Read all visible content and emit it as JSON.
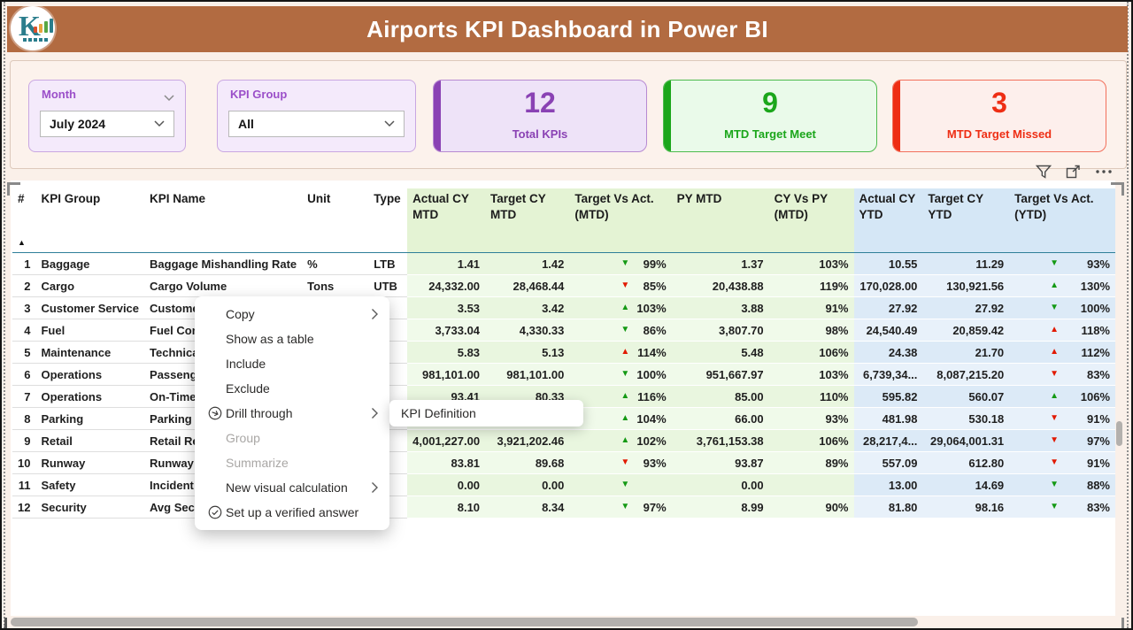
{
  "header": {
    "title": "Airports KPI Dashboard in Power BI",
    "logo_letter": "K"
  },
  "filters": {
    "month": {
      "label": "Month",
      "value": "July 2024"
    },
    "kpi_group": {
      "label": "KPI Group",
      "value": "All"
    }
  },
  "cards": [
    {
      "value": "12",
      "label": "Total KPIs",
      "accent": "#8a42b4",
      "bg": "#eee3f8",
      "border": "#b78ad2"
    },
    {
      "value": "9",
      "label": "MTD Target Meet",
      "accent": "#1ba61b",
      "bg": "#eafaea",
      "border": "#4dbb4d"
    },
    {
      "value": "3",
      "label": "MTD Target Missed",
      "accent": "#ee2e14",
      "bg": "#fdefec",
      "border": "#f2705c"
    }
  ],
  "arrow_colors": {
    "green": "#149914",
    "red": "#e11900"
  },
  "table": {
    "columns": [
      "#",
      "KPI Group",
      "KPI Name",
      "Unit",
      "Type",
      "Actual CY MTD",
      "Target CY MTD",
      "Target Vs Act. (MTD)",
      "PY MTD",
      "CY Vs PY (MTD)",
      "Actual CY YTD",
      "Target CY YTD",
      "Target Vs Act. (YTD)"
    ],
    "rows": [
      {
        "num": "1",
        "group": "Baggage",
        "name": "Baggage Mishandling Rate",
        "unit": "%",
        "type": "LTB",
        "actual_mtd": "1.41",
        "target_mtd": "1.42",
        "mtd_dir": "down",
        "mtd_color": "green",
        "mtd_pct": "99%",
        "py_mtd": "1.37",
        "cy_vs_py": "103%",
        "actual_ytd": "10.55",
        "target_ytd": "11.29",
        "ytd_dir": "down",
        "ytd_color": "green",
        "ytd_pct": "93%"
      },
      {
        "num": "2",
        "group": "Cargo",
        "name": "Cargo Volume",
        "unit": "Tons",
        "type": "UTB",
        "actual_mtd": "24,332.00",
        "target_mtd": "28,468.44",
        "mtd_dir": "down",
        "mtd_color": "red",
        "mtd_pct": "85%",
        "py_mtd": "20,438.88",
        "cy_vs_py": "119%",
        "actual_ytd": "170,028.00",
        "target_ytd": "130,921.56",
        "ytd_dir": "up",
        "ytd_color": "green",
        "ytd_pct": "130%"
      },
      {
        "num": "3",
        "group": "Customer Service",
        "name": "Customer S",
        "unit": "",
        "type": "",
        "actual_mtd": "3.53",
        "target_mtd": "3.42",
        "mtd_dir": "up",
        "mtd_color": "green",
        "mtd_pct": "103%",
        "py_mtd": "3.88",
        "cy_vs_py": "91%",
        "actual_ytd": "27.92",
        "target_ytd": "27.92",
        "ytd_dir": "down",
        "ytd_color": "green",
        "ytd_pct": "100%"
      },
      {
        "num": "4",
        "group": "Fuel",
        "name": "Fuel Consu",
        "unit": "",
        "type": "",
        "actual_mtd": "3,733.04",
        "target_mtd": "4,330.33",
        "mtd_dir": "down",
        "mtd_color": "green",
        "mtd_pct": "86%",
        "py_mtd": "3,807.70",
        "cy_vs_py": "98%",
        "actual_ytd": "24,540.49",
        "target_ytd": "20,859.42",
        "ytd_dir": "up",
        "ytd_color": "red",
        "ytd_pct": "118%"
      },
      {
        "num": "5",
        "group": "Maintenance",
        "name": "Technical D",
        "unit": "",
        "type": "",
        "actual_mtd": "5.83",
        "target_mtd": "5.13",
        "mtd_dir": "up",
        "mtd_color": "red",
        "mtd_pct": "114%",
        "py_mtd": "5.48",
        "cy_vs_py": "106%",
        "actual_ytd": "24.38",
        "target_ytd": "21.70",
        "ytd_dir": "up",
        "ytd_color": "red",
        "ytd_pct": "112%"
      },
      {
        "num": "6",
        "group": "Operations",
        "name": "Passenger",
        "unit": "",
        "type": "",
        "actual_mtd": "981,101.00",
        "target_mtd": "981,101.00",
        "mtd_dir": "down",
        "mtd_color": "green",
        "mtd_pct": "100%",
        "py_mtd": "951,667.97",
        "cy_vs_py": "103%",
        "actual_ytd": "6,739,34...",
        "target_ytd": "8,087,215.20",
        "ytd_dir": "down",
        "ytd_color": "red",
        "ytd_pct": "83%"
      },
      {
        "num": "7",
        "group": "Operations",
        "name": "On-Time D",
        "unit": "",
        "type": "",
        "actual_mtd": "93.41",
        "target_mtd": "80.33",
        "mtd_dir": "up",
        "mtd_color": "green",
        "mtd_pct": "116%",
        "py_mtd": "85.00",
        "cy_vs_py": "110%",
        "actual_ytd": "595.82",
        "target_ytd": "560.07",
        "ytd_dir": "up",
        "ytd_color": "green",
        "ytd_pct": "106%"
      },
      {
        "num": "8",
        "group": "Parking",
        "name": "Parking Oc",
        "unit": "",
        "type": "",
        "actual_mtd": "",
        "target_mtd": "",
        "mtd_dir": "up",
        "mtd_color": "green",
        "mtd_pct": "104%",
        "py_mtd": "66.00",
        "cy_vs_py": "93%",
        "actual_ytd": "481.98",
        "target_ytd": "530.18",
        "ytd_dir": "down",
        "ytd_color": "red",
        "ytd_pct": "91%"
      },
      {
        "num": "9",
        "group": "Retail",
        "name": "Retail Reve",
        "unit": "",
        "type": "",
        "actual_mtd": "4,001,227.00",
        "target_mtd": "3,921,202.46",
        "mtd_dir": "up",
        "mtd_color": "green",
        "mtd_pct": "102%",
        "py_mtd": "3,761,153.38",
        "cy_vs_py": "106%",
        "actual_ytd": "28,217,4...",
        "target_ytd": "29,064,001.31",
        "ytd_dir": "down",
        "ytd_color": "red",
        "ytd_pct": "97%"
      },
      {
        "num": "10",
        "group": "Runway",
        "name": "Runway Ut",
        "unit": "",
        "type": "",
        "actual_mtd": "83.81",
        "target_mtd": "89.68",
        "mtd_dir": "down",
        "mtd_color": "red",
        "mtd_pct": "93%",
        "py_mtd": "93.87",
        "cy_vs_py": "89%",
        "actual_ytd": "557.09",
        "target_ytd": "612.80",
        "ytd_dir": "down",
        "ytd_color": "red",
        "ytd_pct": "91%"
      },
      {
        "num": "11",
        "group": "Safety",
        "name": "Incident Ra",
        "unit": "",
        "type": "",
        "actual_mtd": "0.00",
        "target_mtd": "0.00",
        "mtd_dir": "down",
        "mtd_color": "green",
        "mtd_pct": "",
        "py_mtd": "0.00",
        "cy_vs_py": "",
        "actual_ytd": "13.00",
        "target_ytd": "14.69",
        "ytd_dir": "down",
        "ytd_color": "green",
        "ytd_pct": "88%"
      },
      {
        "num": "12",
        "group": "Security",
        "name": "Avg Securi",
        "unit": "",
        "type": "",
        "actual_mtd": "8.10",
        "target_mtd": "8.34",
        "mtd_dir": "down",
        "mtd_color": "green",
        "mtd_pct": "97%",
        "py_mtd": "8.99",
        "cy_vs_py": "90%",
        "actual_ytd": "81.80",
        "target_ytd": "98.16",
        "ytd_dir": "down",
        "ytd_color": "green",
        "ytd_pct": "83%"
      }
    ]
  },
  "context_menu": {
    "items": [
      {
        "label": "Copy",
        "icon": "",
        "chevron": true,
        "disabled": false
      },
      {
        "label": "Show as a table",
        "icon": "",
        "chevron": false,
        "disabled": false
      },
      {
        "label": "Include",
        "icon": "",
        "chevron": false,
        "disabled": false
      },
      {
        "label": "Exclude",
        "icon": "",
        "chevron": false,
        "disabled": false
      },
      {
        "label": "Drill through",
        "icon": "drill-through-icon",
        "chevron": true,
        "disabled": false
      },
      {
        "label": "Group",
        "icon": "",
        "chevron": false,
        "disabled": true
      },
      {
        "label": "Summarize",
        "icon": "",
        "chevron": false,
        "disabled": true
      },
      {
        "label": "New visual calculation",
        "icon": "",
        "chevron": true,
        "disabled": false
      },
      {
        "label": "Set up a verified answer",
        "icon": "check-circle-icon",
        "chevron": false,
        "disabled": false
      }
    ]
  },
  "submenu": {
    "label": "KPI Definition"
  }
}
